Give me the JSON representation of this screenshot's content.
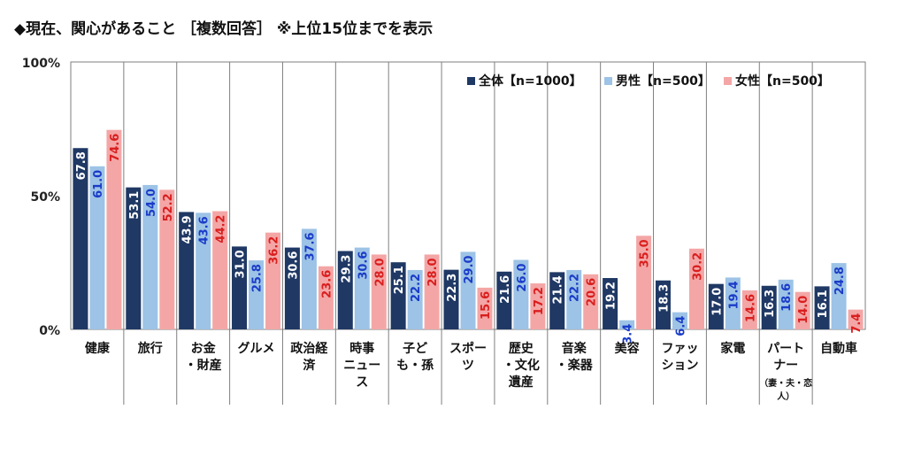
{
  "title": "◆現在、関心があること ［複数回答］ ※上位15位までを表示",
  "chart_data": {
    "type": "bar",
    "ylim": [
      0,
      100
    ],
    "yticks": [
      "100%",
      "50%",
      "0%"
    ],
    "ytick_values": [
      100,
      50,
      0
    ],
    "grid": true,
    "legend_position": "top-right",
    "categories": [
      [
        "健康"
      ],
      [
        "旅行"
      ],
      [
        "お金",
        "・財産"
      ],
      [
        "グルメ"
      ],
      [
        "政治経",
        "済"
      ],
      [
        "時事",
        "ニュー",
        "ス"
      ],
      [
        "子ど",
        "も・孫"
      ],
      [
        "スポー",
        "ツ"
      ],
      [
        "歴史",
        "・文化",
        "遺産"
      ],
      [
        "音楽",
        "・楽器"
      ],
      [
        "美容"
      ],
      [
        "ファッ",
        "ション"
      ],
      [
        "家電"
      ],
      [
        "パート",
        "ナー",
        "（妻・夫・恋",
        "人）"
      ],
      [
        "自動車"
      ]
    ],
    "series": [
      {
        "name": "全体【n=1000】",
        "color": "#1f3864",
        "label_color": "#ffffff",
        "values": [
          67.8,
          53.1,
          43.9,
          31.0,
          30.6,
          29.3,
          25.1,
          22.3,
          21.6,
          21.4,
          19.2,
          18.3,
          17.0,
          16.3,
          16.1
        ]
      },
      {
        "name": "男性【n=500】",
        "color": "#9dc3e6",
        "label_color": "#1a3cc8",
        "values": [
          61.0,
          54.0,
          43.6,
          25.8,
          37.6,
          30.6,
          22.2,
          29.0,
          26.0,
          22.2,
          3.4,
          6.4,
          19.4,
          18.6,
          24.8
        ]
      },
      {
        "name": "女性【n=500】",
        "color": "#f4a6a6",
        "label_color": "#d91e1e",
        "values": [
          74.6,
          52.2,
          44.2,
          36.2,
          23.6,
          28.0,
          28.0,
          15.6,
          17.2,
          20.6,
          35.0,
          30.2,
          14.6,
          14.0,
          7.4
        ]
      }
    ]
  }
}
